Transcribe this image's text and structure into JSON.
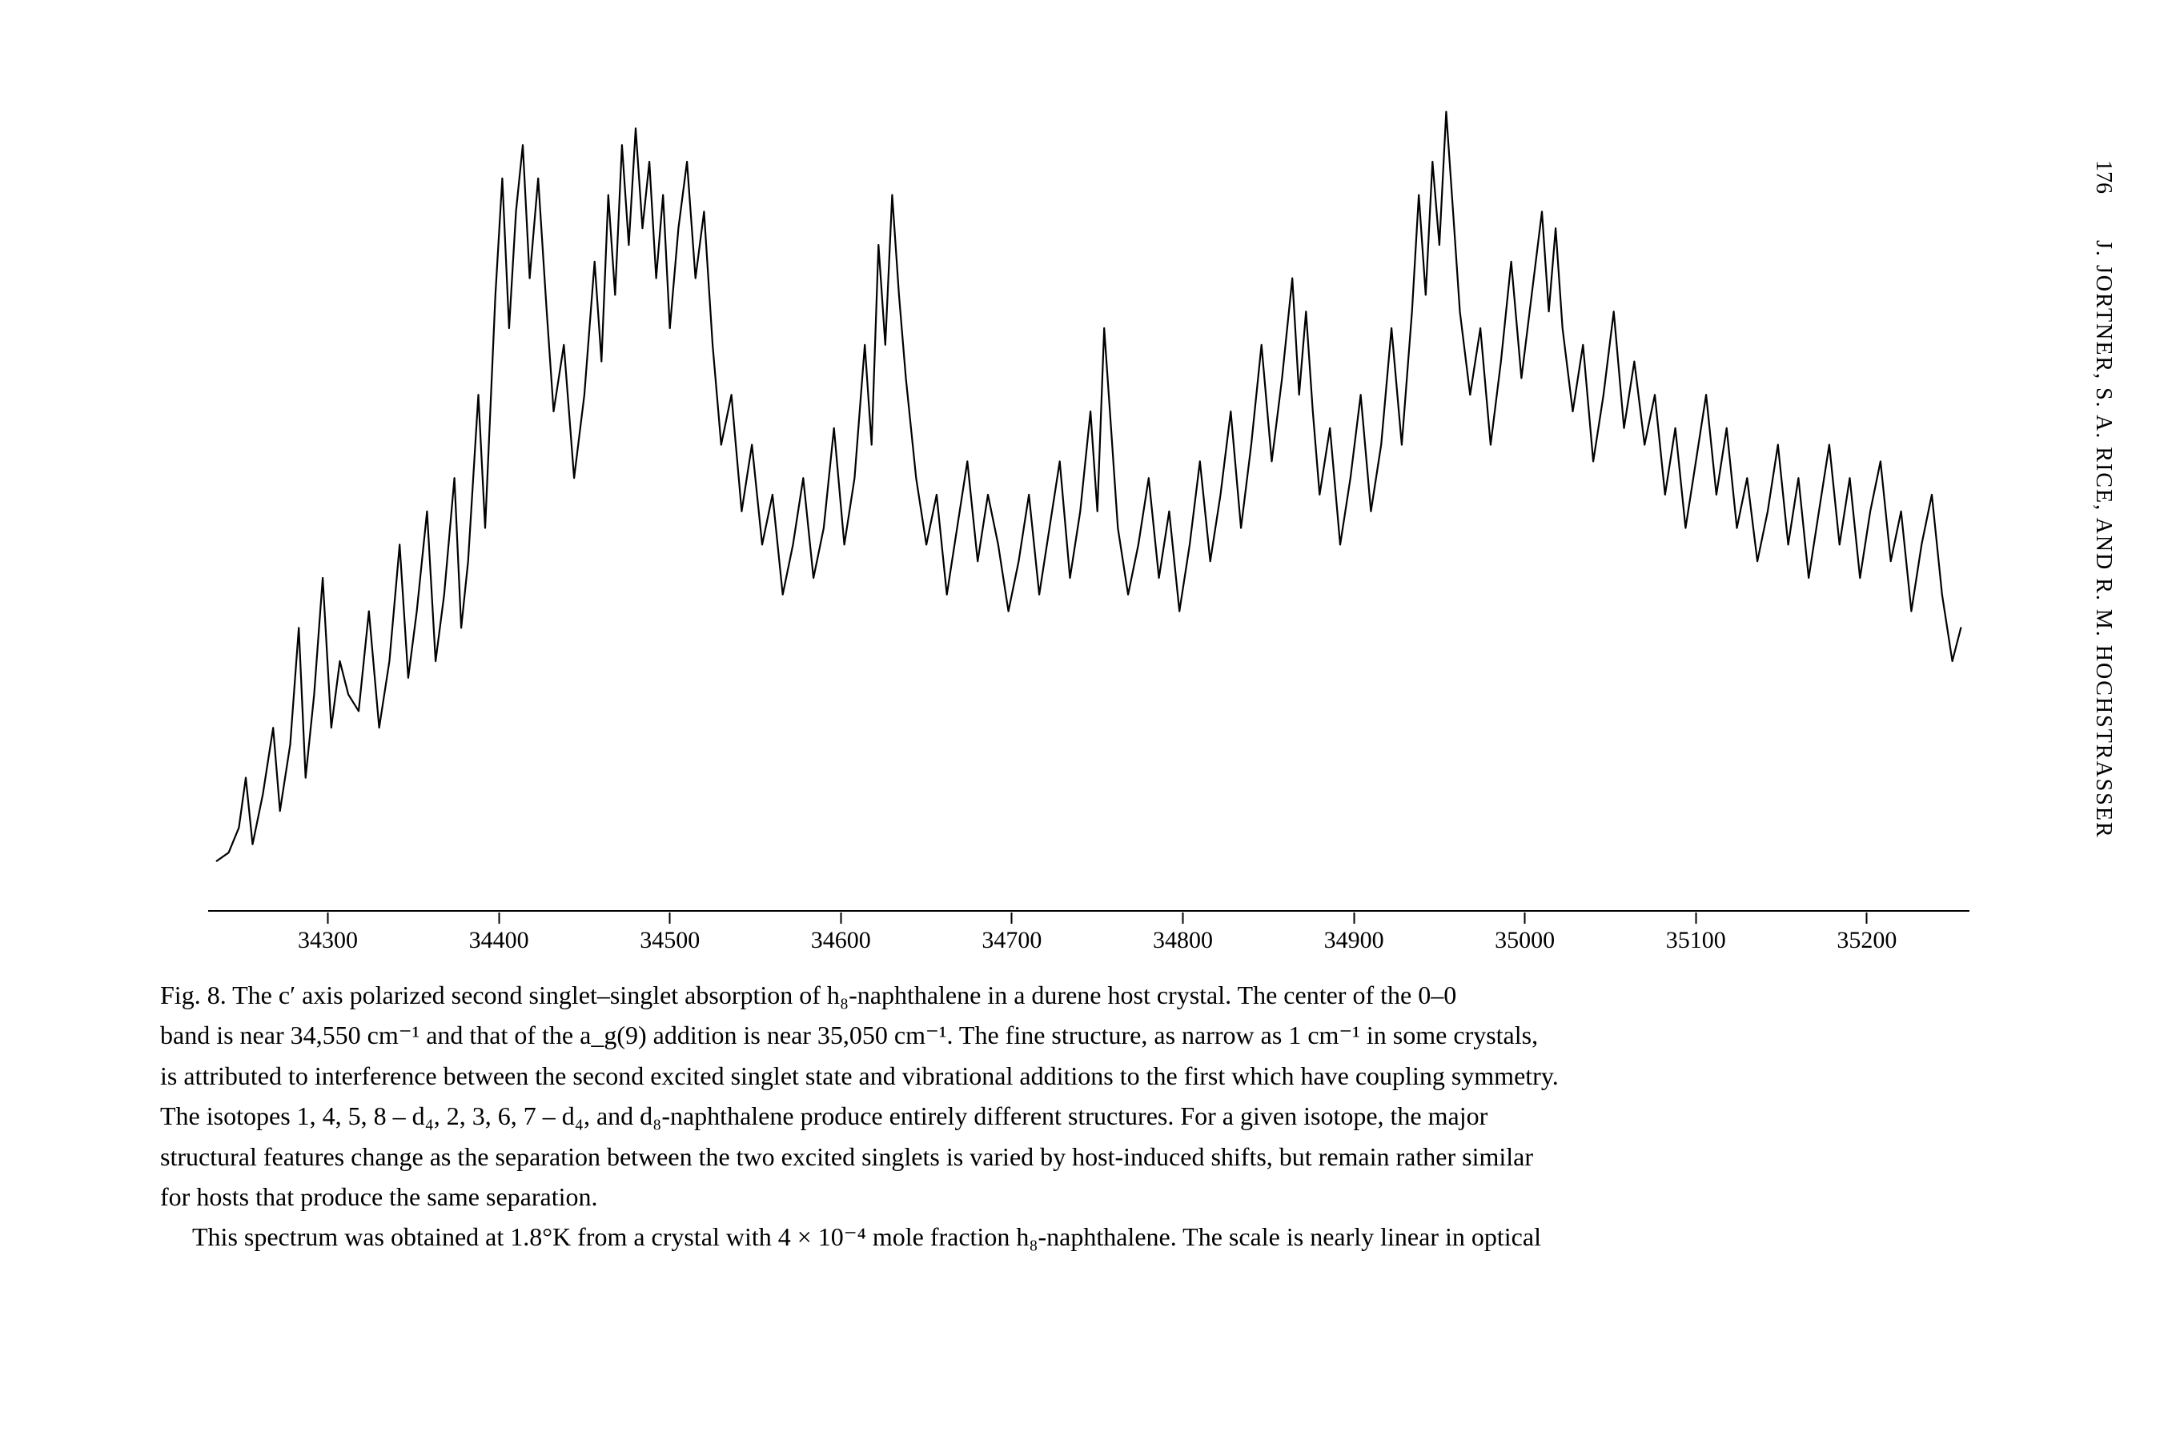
{
  "margin": {
    "page_number": "176",
    "authors": "J. JORTNER, S. A. RICE, AND R. M. HOCHSTRASSER"
  },
  "figure": {
    "type": "line",
    "x_unit": "cm^-1",
    "xlim": [
      34230,
      35260
    ],
    "x_ticks": [
      34300,
      34400,
      34500,
      34600,
      34700,
      34800,
      34900,
      35000,
      35100,
      35200
    ],
    "y_arbitrary": true,
    "ylim": [
      0,
      100
    ],
    "line_color": "#000000",
    "line_width": 2.2,
    "background_color": "#ffffff",
    "tick_label_fontsize": 30,
    "spectrum_points": [
      [
        34235,
        6
      ],
      [
        34242,
        7
      ],
      [
        34248,
        10
      ],
      [
        34252,
        16
      ],
      [
        34256,
        8
      ],
      [
        34262,
        14
      ],
      [
        34268,
        22
      ],
      [
        34272,
        12
      ],
      [
        34278,
        20
      ],
      [
        34283,
        34
      ],
      [
        34287,
        16
      ],
      [
        34292,
        26
      ],
      [
        34297,
        40
      ],
      [
        34302,
        22
      ],
      [
        34307,
        30
      ],
      [
        34312,
        26
      ],
      [
        34318,
        24
      ],
      [
        34324,
        36
      ],
      [
        34330,
        22
      ],
      [
        34336,
        30
      ],
      [
        34342,
        44
      ],
      [
        34347,
        28
      ],
      [
        34352,
        36
      ],
      [
        34358,
        48
      ],
      [
        34363,
        30
      ],
      [
        34368,
        38
      ],
      [
        34374,
        52
      ],
      [
        34378,
        34
      ],
      [
        34382,
        42
      ],
      [
        34388,
        62
      ],
      [
        34392,
        46
      ],
      [
        34398,
        74
      ],
      [
        34402,
        88
      ],
      [
        34406,
        70
      ],
      [
        34410,
        84
      ],
      [
        34414,
        92
      ],
      [
        34418,
        76
      ],
      [
        34423,
        88
      ],
      [
        34428,
        72
      ],
      [
        34432,
        60
      ],
      [
        34438,
        68
      ],
      [
        34444,
        52
      ],
      [
        34450,
        62
      ],
      [
        34456,
        78
      ],
      [
        34460,
        66
      ],
      [
        34464,
        86
      ],
      [
        34468,
        74
      ],
      [
        34472,
        92
      ],
      [
        34476,
        80
      ],
      [
        34480,
        94
      ],
      [
        34484,
        82
      ],
      [
        34488,
        90
      ],
      [
        34492,
        76
      ],
      [
        34496,
        86
      ],
      [
        34500,
        70
      ],
      [
        34505,
        82
      ],
      [
        34510,
        90
      ],
      [
        34515,
        76
      ],
      [
        34520,
        84
      ],
      [
        34525,
        68
      ],
      [
        34530,
        56
      ],
      [
        34536,
        62
      ],
      [
        34542,
        48
      ],
      [
        34548,
        56
      ],
      [
        34554,
        44
      ],
      [
        34560,
        50
      ],
      [
        34566,
        38
      ],
      [
        34572,
        44
      ],
      [
        34578,
        52
      ],
      [
        34584,
        40
      ],
      [
        34590,
        46
      ],
      [
        34596,
        58
      ],
      [
        34602,
        44
      ],
      [
        34608,
        52
      ],
      [
        34614,
        68
      ],
      [
        34618,
        56
      ],
      [
        34622,
        80
      ],
      [
        34626,
        68
      ],
      [
        34630,
        86
      ],
      [
        34634,
        74
      ],
      [
        34638,
        64
      ],
      [
        34644,
        52
      ],
      [
        34650,
        44
      ],
      [
        34656,
        50
      ],
      [
        34662,
        38
      ],
      [
        34668,
        46
      ],
      [
        34674,
        54
      ],
      [
        34680,
        42
      ],
      [
        34686,
        50
      ],
      [
        34692,
        44
      ],
      [
        34698,
        36
      ],
      [
        34704,
        42
      ],
      [
        34710,
        50
      ],
      [
        34716,
        38
      ],
      [
        34722,
        46
      ],
      [
        34728,
        54
      ],
      [
        34734,
        40
      ],
      [
        34740,
        48
      ],
      [
        34746,
        60
      ],
      [
        34750,
        48
      ],
      [
        34754,
        70
      ],
      [
        34758,
        58
      ],
      [
        34762,
        46
      ],
      [
        34768,
        38
      ],
      [
        34774,
        44
      ],
      [
        34780,
        52
      ],
      [
        34786,
        40
      ],
      [
        34792,
        48
      ],
      [
        34798,
        36
      ],
      [
        34804,
        44
      ],
      [
        34810,
        54
      ],
      [
        34816,
        42
      ],
      [
        34822,
        50
      ],
      [
        34828,
        60
      ],
      [
        34834,
        46
      ],
      [
        34840,
        56
      ],
      [
        34846,
        68
      ],
      [
        34852,
        54
      ],
      [
        34858,
        64
      ],
      [
        34864,
        76
      ],
      [
        34868,
        62
      ],
      [
        34872,
        72
      ],
      [
        34876,
        60
      ],
      [
        34880,
        50
      ],
      [
        34886,
        58
      ],
      [
        34892,
        44
      ],
      [
        34898,
        52
      ],
      [
        34904,
        62
      ],
      [
        34910,
        48
      ],
      [
        34916,
        56
      ],
      [
        34922,
        70
      ],
      [
        34928,
        56
      ],
      [
        34934,
        72
      ],
      [
        34938,
        86
      ],
      [
        34942,
        74
      ],
      [
        34946,
        90
      ],
      [
        34950,
        80
      ],
      [
        34954,
        96
      ],
      [
        34958,
        84
      ],
      [
        34962,
        72
      ],
      [
        34968,
        62
      ],
      [
        34974,
        70
      ],
      [
        34980,
        56
      ],
      [
        34986,
        66
      ],
      [
        34992,
        78
      ],
      [
        34998,
        64
      ],
      [
        35004,
        74
      ],
      [
        35010,
        84
      ],
      [
        35014,
        72
      ],
      [
        35018,
        82
      ],
      [
        35022,
        70
      ],
      [
        35028,
        60
      ],
      [
        35034,
        68
      ],
      [
        35040,
        54
      ],
      [
        35046,
        62
      ],
      [
        35052,
        72
      ],
      [
        35058,
        58
      ],
      [
        35064,
        66
      ],
      [
        35070,
        56
      ],
      [
        35076,
        62
      ],
      [
        35082,
        50
      ],
      [
        35088,
        58
      ],
      [
        35094,
        46
      ],
      [
        35100,
        54
      ],
      [
        35106,
        62
      ],
      [
        35112,
        50
      ],
      [
        35118,
        58
      ],
      [
        35124,
        46
      ],
      [
        35130,
        52
      ],
      [
        35136,
        42
      ],
      [
        35142,
        48
      ],
      [
        35148,
        56
      ],
      [
        35154,
        44
      ],
      [
        35160,
        52
      ],
      [
        35166,
        40
      ],
      [
        35172,
        48
      ],
      [
        35178,
        56
      ],
      [
        35184,
        44
      ],
      [
        35190,
        52
      ],
      [
        35196,
        40
      ],
      [
        35202,
        48
      ],
      [
        35208,
        54
      ],
      [
        35214,
        42
      ],
      [
        35220,
        48
      ],
      [
        35226,
        36
      ],
      [
        35232,
        44
      ],
      [
        35238,
        50
      ],
      [
        35244,
        38
      ],
      [
        35250,
        30
      ],
      [
        35255,
        34
      ]
    ]
  },
  "caption": {
    "fig_label": "Fig. 8.",
    "line1": "The c′ axis polarized second singlet–singlet absorption of h₈-naphthalene in a durene host crystal. The center of the 0–0",
    "line2": "band is near 34,550 cm⁻¹ and that of the a_g(9) addition is near 35,050 cm⁻¹. The fine structure, as narrow as 1 cm⁻¹ in some crystals,",
    "line3": "is attributed to interference between the second excited singlet state and vibrational additions to the first which have coupling symmetry.",
    "line4": "The isotopes 1, 4, 5, 8 – d₄, 2, 3, 6, 7 – d₄, and d₈-naphthalene produce entirely different structures. For a given isotope, the major",
    "line5": "structural features change as the separation between the two excited singlets is varied by host-induced shifts, but remain rather similar",
    "line6": "for hosts that produce the same separation.",
    "line7": "This spectrum was obtained at 1.8°K from a crystal with 4 × 10⁻⁴ mole fraction h₈-naphthalene. The scale is nearly linear in optical"
  }
}
